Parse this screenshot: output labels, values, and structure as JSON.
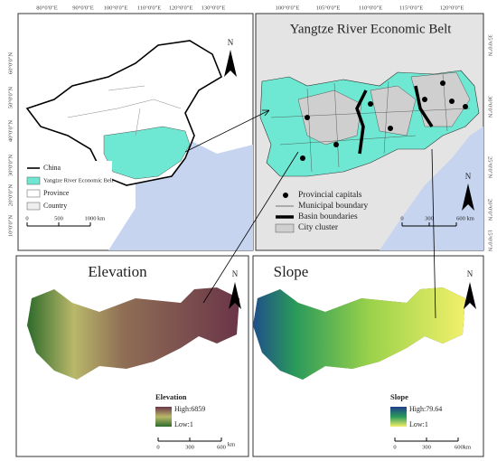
{
  "overview_map": {
    "north": "N",
    "lon_labels": [
      "80°0'0\"E",
      "90°0'0\"E",
      "100°0'0\"E",
      "110°0'0\"E",
      "120°0'0\"E",
      "130°0'0\"E"
    ],
    "lat_labels": [
      "60°0'0\"N",
      "50°0'0\"N",
      "40°0'0\"N",
      "30°0'0\"N",
      "20°0'0\"N",
      "10°0'0\"N"
    ],
    "legend": [
      "China",
      "Yangtze River Economic Belt",
      "Province",
      "Country"
    ],
    "scale": [
      "0",
      "500",
      "1000",
      "km"
    ]
  },
  "study_area_map": {
    "title": "Yangtze River Economic Belt",
    "north": "N",
    "lon_labels": [
      "100°0'0\"E",
      "105°0'0\"E",
      "110°0'0\"E",
      "115°0'0\"E",
      "120°0'0\"E"
    ],
    "lat_labels": [
      "35°0'0\"N",
      "30°0'0\"N",
      "25°0'0\"N",
      "20°0'0\"N",
      "15°0'0\"N"
    ],
    "legend": [
      "Provincial capitals",
      "Municipal boundary",
      "Basin boundaries",
      "City cluster"
    ],
    "scale": [
      "0",
      "300",
      "600 km"
    ]
  },
  "elevation_map": {
    "title": "Elevation",
    "north": "N",
    "legend_title": "Elevation",
    "high": "High:6859",
    "low": "Low:1",
    "scale": [
      "0",
      "300",
      "600",
      "km"
    ]
  },
  "slope_map": {
    "title": "Slope",
    "north": "N",
    "legend_title": "Slope",
    "high": "High:79.64",
    "low": "Low:1",
    "scale": [
      "0",
      "300",
      "600km"
    ]
  }
}
